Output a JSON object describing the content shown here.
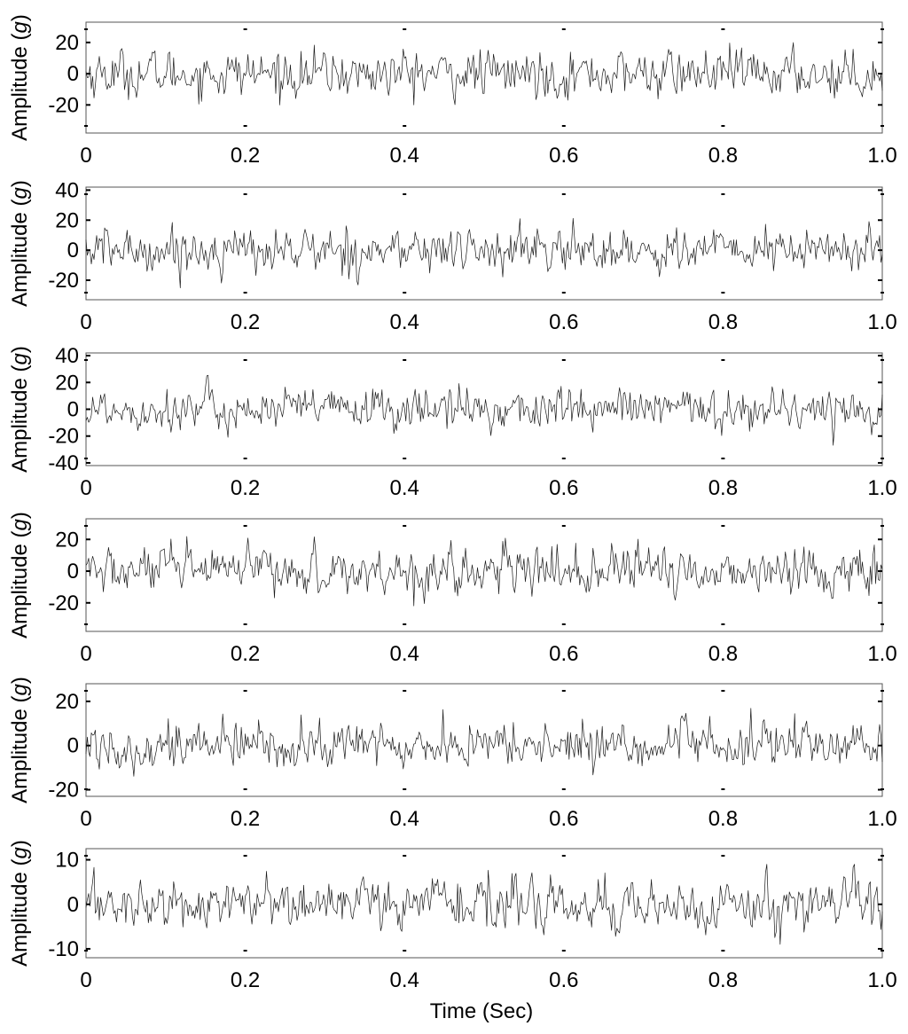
{
  "figure": {
    "xlabel": "Time (Sec)",
    "colors": {
      "line": "#1a1a1a",
      "axes": "#555555",
      "marker": "#000000"
    }
  },
  "chart_data": [
    {
      "type": "line",
      "panel": 1,
      "ylabel": "Amplitude (g)",
      "xlim": [
        0,
        1.0
      ],
      "ylim": [
        -38,
        33
      ],
      "xticks": [
        0,
        0.2,
        0.4,
        0.6,
        0.8,
        1.0
      ],
      "xtick_labels": [
        "0",
        "0.2",
        "0.4",
        "0.6",
        "0.8",
        "1.0"
      ],
      "yticks": [
        -20,
        0,
        20
      ],
      "ytick_labels": [
        "-20",
        "0",
        "20"
      ],
      "grid": false,
      "signal": {
        "samples": 600,
        "amplitude": 7,
        "peak": 28,
        "description_of_shape": "random vibration"
      }
    },
    {
      "type": "line",
      "panel": 2,
      "ylabel": "Amplitude (g)",
      "xlim": [
        0,
        1.0
      ],
      "ylim": [
        -33,
        42
      ],
      "xticks": [
        0,
        0.2,
        0.4,
        0.6,
        0.8,
        1.0
      ],
      "xtick_labels": [
        "0",
        "0.2",
        "0.4",
        "0.6",
        "0.8",
        "1.0"
      ],
      "yticks": [
        -20,
        0,
        20,
        40
      ],
      "ytick_labels": [
        "-20",
        "0",
        "20",
        "40"
      ],
      "grid": false,
      "signal": {
        "samples": 600,
        "amplitude": 7,
        "peak": 30
      }
    },
    {
      "type": "line",
      "panel": 3,
      "ylabel": "Amplitude (g)",
      "xlim": [
        0,
        1.0
      ],
      "ylim": [
        -42,
        42
      ],
      "xticks": [
        0,
        0.2,
        0.4,
        0.6,
        0.8,
        1.0
      ],
      "xtick_labels": [
        "0",
        "0.2",
        "0.4",
        "0.6",
        "0.8",
        "1.0"
      ],
      "yticks": [
        -40,
        -20,
        0,
        20,
        40
      ],
      "ytick_labels": [
        "-40",
        "-20",
        "0",
        "20",
        "40"
      ],
      "grid": false,
      "signal": {
        "samples": 600,
        "amplitude": 7.5,
        "peak": 30
      }
    },
    {
      "type": "line",
      "panel": 4,
      "ylabel": "Amplitude (g)",
      "xlim": [
        0,
        1.0
      ],
      "ylim": [
        -38,
        33
      ],
      "xticks": [
        0,
        0.2,
        0.4,
        0.6,
        0.8,
        1.0
      ],
      "xtick_labels": [
        "0",
        "0.2",
        "0.4",
        "0.6",
        "0.8",
        "1.0"
      ],
      "yticks": [
        -20,
        0,
        20
      ],
      "ytick_labels": [
        "-20",
        "0",
        "20"
      ],
      "grid": false,
      "signal": {
        "samples": 600,
        "amplitude": 7,
        "peak": 26
      }
    },
    {
      "type": "line",
      "panel": 5,
      "ylabel": "Amplitude (g)",
      "xlim": [
        0,
        1.0
      ],
      "ylim": [
        -23,
        28
      ],
      "xticks": [
        0,
        0.2,
        0.4,
        0.6,
        0.8,
        1.0
      ],
      "xtick_labels": [
        "0",
        "0.2",
        "0.4",
        "0.6",
        "0.8",
        "1.0"
      ],
      "yticks": [
        -20,
        0,
        20
      ],
      "ytick_labels": [
        "-20",
        "0",
        "20"
      ],
      "grid": false,
      "signal": {
        "samples": 600,
        "amplitude": 5,
        "peak": 20
      }
    },
    {
      "type": "line",
      "panel": 6,
      "ylabel": "Amplitude (g)",
      "xlim": [
        0,
        1.0
      ],
      "ylim": [
        -12,
        12.5
      ],
      "xticks": [
        0,
        0.2,
        0.4,
        0.6,
        0.8,
        1.0
      ],
      "xtick_labels": [
        "0",
        "0.2",
        "0.4",
        "0.6",
        "0.8",
        "1.0"
      ],
      "yticks": [
        -10,
        0,
        10
      ],
      "ytick_labels": [
        "-10",
        "0",
        "10"
      ],
      "grid": false,
      "signal": {
        "samples": 600,
        "amplitude": 2.6,
        "peak": 9
      }
    }
  ]
}
